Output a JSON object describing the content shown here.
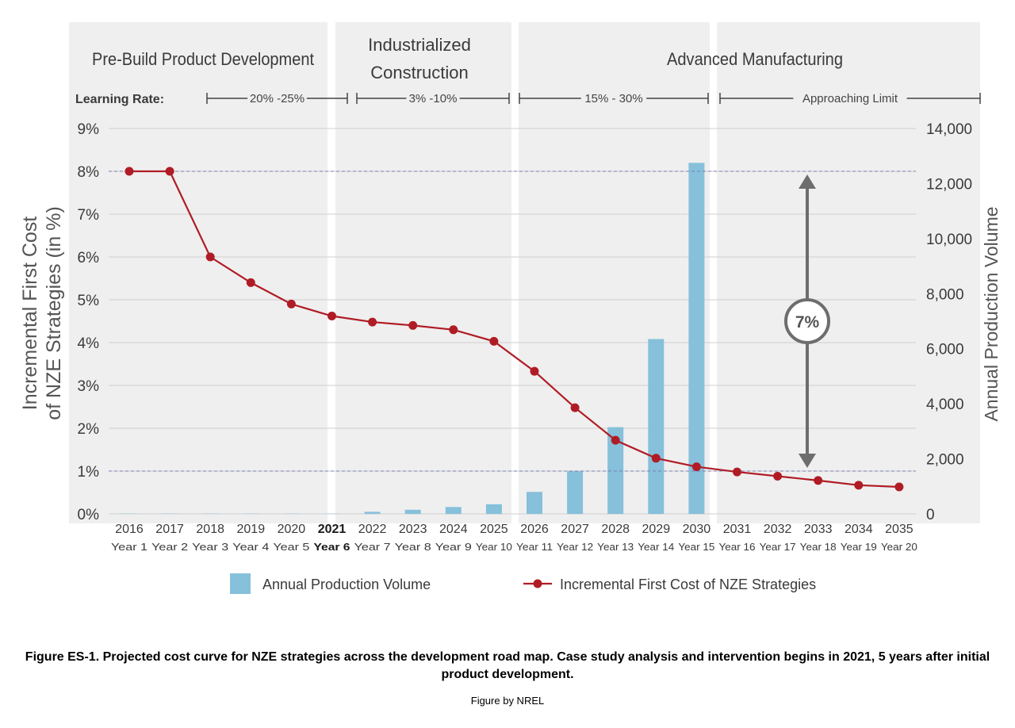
{
  "chart_data": {
    "type": "bar+line",
    "phases": [
      {
        "name": "Pre-Build Product Development",
        "learning_rate": "20% -25%"
      },
      {
        "name": "Industrialized Construction",
        "learning_rate": "3% -10%"
      },
      {
        "name": "Advanced Manufacturing",
        "learning_rate": "15% - 30%"
      },
      {
        "name": "",
        "learning_rate": "Approaching Limit"
      }
    ],
    "learning_rate_label": "Learning Rate:",
    "x_years": [
      "2016",
      "2017",
      "2018",
      "2019",
      "2020",
      "2021",
      "2022",
      "2023",
      "2024",
      "2025",
      "2026",
      "2027",
      "2028",
      "2029",
      "2030",
      "2031",
      "2032",
      "2033",
      "2034",
      "2035"
    ],
    "x_sublabels": [
      "Year 1",
      "Year 2",
      "Year 3",
      "Year 4",
      "Year 5",
      "Year 6",
      "Year 7",
      "Year 8",
      "Year 9",
      "Year 10",
      "Year 11",
      "Year 12",
      "Year 13",
      "Year 14",
      "Year 15",
      "Year 16",
      "Year 17",
      "Year 18",
      "Year 19",
      "Year 20"
    ],
    "highlight_year": "2021",
    "series": [
      {
        "name": "Annual Production Volume",
        "type": "bar",
        "axis": "right",
        "color": "#86c0db",
        "values": [
          10,
          10,
          10,
          10,
          10,
          10,
          75,
          150,
          250,
          350,
          800,
          1550,
          3150,
          6350,
          12750,
          null,
          null,
          null,
          null,
          null
        ]
      },
      {
        "name": "Incremental First Cost of NZE Strategies",
        "type": "line",
        "axis": "left",
        "color": "#b01c25",
        "values": [
          8.0,
          8.0,
          6.0,
          5.4,
          4.9,
          4.62,
          4.48,
          4.4,
          4.3,
          4.03,
          3.33,
          2.48,
          1.72,
          1.3,
          1.1,
          0.98,
          0.88,
          0.78,
          0.67,
          0.63
        ]
      }
    ],
    "y_left": {
      "label": "Incremental First Cost of NZE Strategies (in %)",
      "lim": [
        0,
        9
      ],
      "ticks": [
        "0%",
        "1%",
        "2%",
        "3%",
        "4%",
        "5%",
        "6%",
        "7%",
        "8%",
        "9%"
      ]
    },
    "y_right": {
      "label": "Annual Production Volume",
      "lim": [
        0,
        14000
      ],
      "ticks": [
        "0",
        "2,000",
        "4,000",
        "6,000",
        "8,000",
        "10,000",
        "12,000",
        "14,000"
      ]
    },
    "reference_lines": [
      8,
      1
    ],
    "annotation": "7%",
    "grid": true,
    "legend_position": "bottom"
  },
  "caption": {
    "title": "Figure ES-1. Projected cost curve for NZE strategies across the development road map. Case study analysis and intervention begins in 2021, 5 years after initial product development.",
    "credit": "Figure by NREL"
  }
}
